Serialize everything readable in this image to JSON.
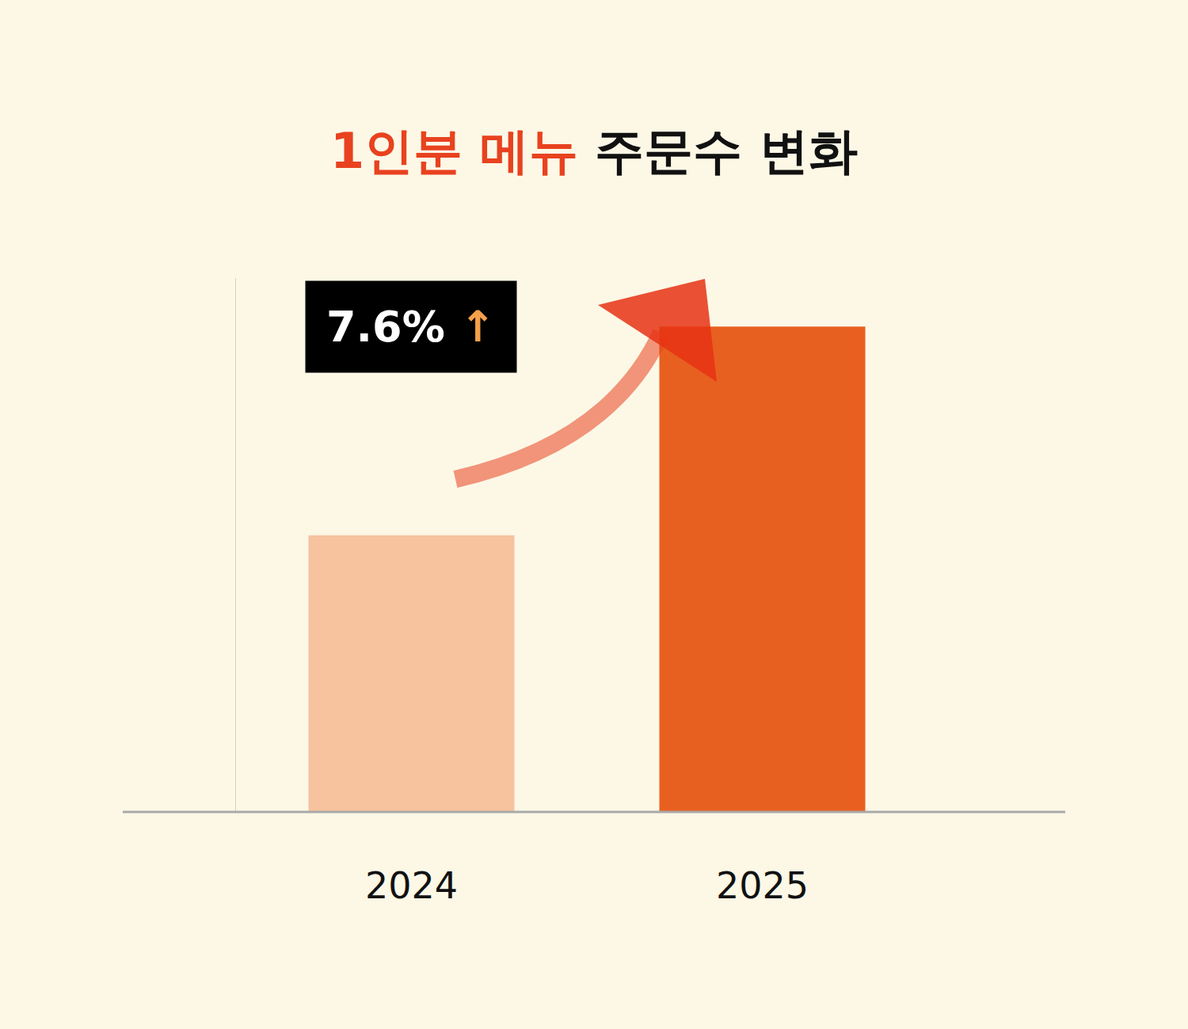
{
  "chart_data": {
    "type": "bar",
    "title": "1인분 메뉴 주문수 변화",
    "categories": [
      "2024",
      "2025"
    ],
    "values": [
      57,
      100
    ],
    "colors": [
      "#f6c39e",
      "#e8601f"
    ],
    "ylim": [
      0,
      110
    ],
    "yticks": [],
    "tick_labels": "x",
    "annotations": [
      "7.6% ↑"
    ]
  }
}
